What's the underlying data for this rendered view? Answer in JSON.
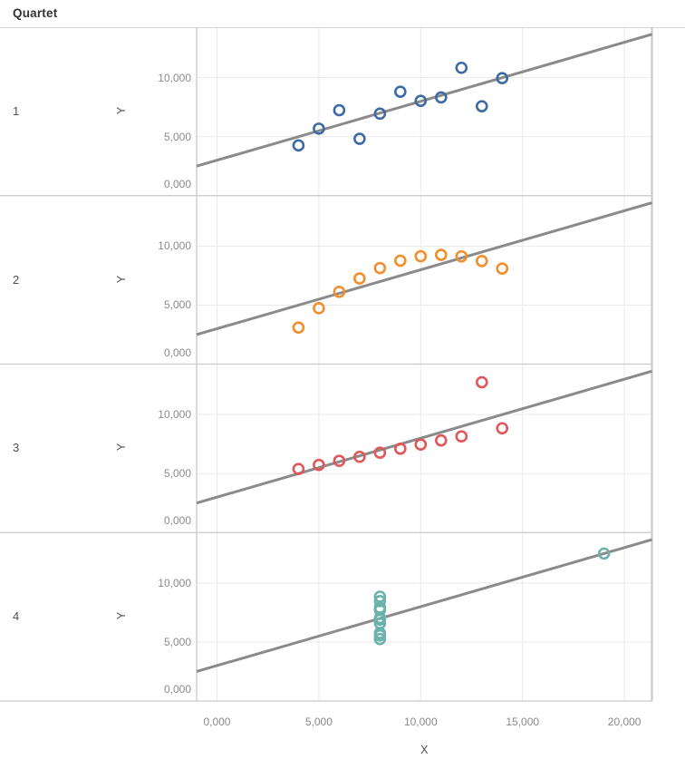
{
  "title": "Quartet",
  "axes": {
    "x_title": "X",
    "y_title": "Y",
    "x_ticks": [
      "0,000",
      "5,000",
      "10,000",
      "15,000",
      "20,000"
    ],
    "x_tick_values": [
      0,
      5000,
      10000,
      15000,
      20000
    ],
    "y_ticks": [
      "0,000",
      "5,000",
      "10,000"
    ],
    "y_tick_values": [
      0,
      5000,
      10000
    ],
    "x_domain": [
      -1000,
      21350
    ],
    "y_domain": [
      0,
      14280
    ],
    "grid": true
  },
  "colors": {
    "gridline": "#e9e9e9",
    "separator": "#c9c9c9",
    "plot_border": "#c6c6c6",
    "trend_line": "#8a8a8a",
    "tick_text": "#8a8a8a",
    "label_text": "#4e4e4e",
    "panel_colors": [
      "#3d6ba6",
      "#f28e2b",
      "#e15759",
      "#6cb2ac"
    ]
  },
  "marker": {
    "style": "open-circle",
    "radius": 5.5,
    "stroke_width": 2.6
  },
  "chart_data": {
    "type": "scatter",
    "facet_field": "Quartet",
    "xlabel": "X",
    "ylabel": "Y",
    "xlim": [
      -1000,
      21350
    ],
    "ylim_per_panel": [
      0,
      14280
    ],
    "legend": "none",
    "trend_line": {
      "slope": 0.5,
      "intercept": 3000,
      "color": "#8a8a8a",
      "note": "same fit y = 3000 + 0.5x in all four panels"
    },
    "panels": [
      {
        "label": "1",
        "color": "#3d6ba6",
        "x": [
          10000,
          8000,
          13000,
          9000,
          11000,
          14000,
          6000,
          4000,
          12000,
          7000,
          5000
        ],
        "y": [
          8040,
          6950,
          7580,
          8810,
          8330,
          9960,
          7240,
          4260,
          10840,
          4820,
          5680
        ]
      },
      {
        "label": "2",
        "color": "#f28e2b",
        "x": [
          10000,
          8000,
          13000,
          9000,
          11000,
          14000,
          6000,
          4000,
          12000,
          7000,
          5000
        ],
        "y": [
          9140,
          8140,
          8740,
          8770,
          9260,
          8100,
          6130,
          3100,
          9130,
          7260,
          4740
        ]
      },
      {
        "label": "3",
        "color": "#e15759",
        "x": [
          10000,
          8000,
          13000,
          9000,
          11000,
          14000,
          6000,
          4000,
          12000,
          7000,
          5000
        ],
        "y": [
          7460,
          6770,
          12740,
          7110,
          7810,
          8840,
          6080,
          5390,
          8150,
          6420,
          5730
        ]
      },
      {
        "label": "4",
        "color": "#6cb2ac",
        "x": [
          8000,
          8000,
          8000,
          8000,
          8000,
          8000,
          8000,
          19000,
          8000,
          8000,
          8000
        ],
        "y": [
          6580,
          5760,
          7710,
          8840,
          8470,
          7040,
          5250,
          12500,
          5560,
          7910,
          6890
        ]
      }
    ]
  }
}
